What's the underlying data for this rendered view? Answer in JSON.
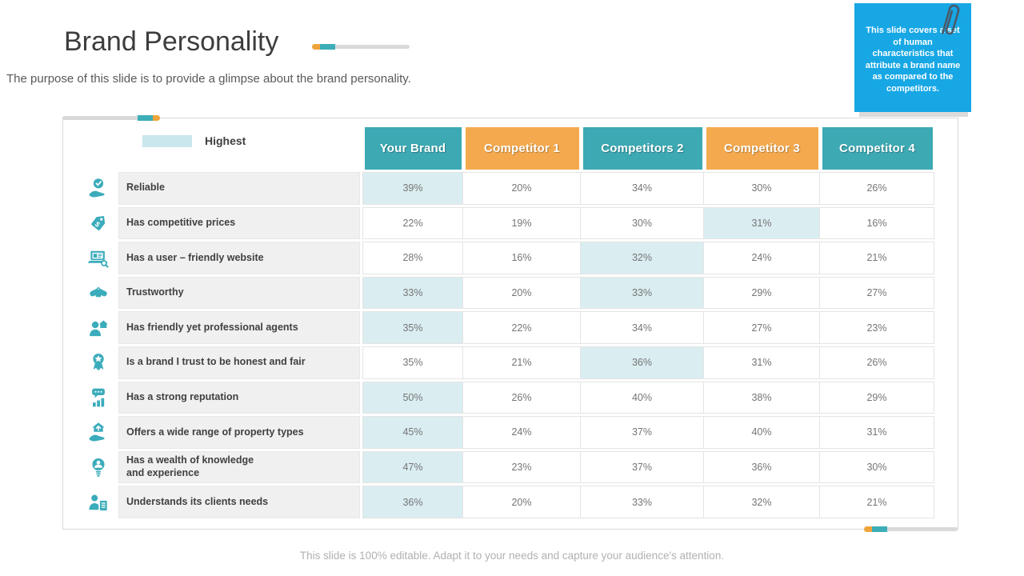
{
  "slide": {
    "title": "Brand Personality",
    "subtitle": "The purpose of this slide is to provide a glimpse about the brand personality.",
    "footer": "This slide is 100% editable. Adapt it to your needs and capture your audience's attention."
  },
  "note": {
    "text": "This slide covers a set of human characteristics that attribute a brand name as compared to the competitors."
  },
  "legend": {
    "label": "Highest"
  },
  "colors": {
    "teal": "#3CA9B3",
    "orange": "#F5A94E",
    "highlight": "#DAEDF1",
    "legend_swatch": "#C9E7EC",
    "note_blue": "#17A7E5",
    "icon_teal": "#3BACBB"
  },
  "chart_data": {
    "type": "table",
    "columns": [
      {
        "label": "Your Brand",
        "scheme": "teal"
      },
      {
        "label": "Competitor 1",
        "scheme": "orange"
      },
      {
        "label": "Competitors 2",
        "scheme": "teal"
      },
      {
        "label": "Competitor 3",
        "scheme": "orange"
      },
      {
        "label": "Competitor 4",
        "scheme": "teal"
      }
    ],
    "rows": [
      {
        "label": "Reliable",
        "icon": "reliability-clock-hand-icon",
        "values": [
          "39%",
          "20%",
          "34%",
          "30%",
          "26%"
        ],
        "highlight": [
          0
        ]
      },
      {
        "label": "Has competitive prices",
        "icon": "price-tag-icon",
        "values": [
          "22%",
          "19%",
          "30%",
          "31%",
          "16%"
        ],
        "highlight": [
          3
        ]
      },
      {
        "label": "Has a user – friendly website",
        "icon": "laptop-search-icon",
        "values": [
          "28%",
          "16%",
          "32%",
          "24%",
          "21%"
        ],
        "highlight": [
          2
        ]
      },
      {
        "label": "Trustworthy",
        "icon": "handshake-icon",
        "values": [
          "33%",
          "20%",
          "33%",
          "29%",
          "27%"
        ],
        "highlight": [
          0,
          2
        ]
      },
      {
        "label": "Has friendly yet professional agents",
        "icon": "agent-house-icon",
        "values": [
          "35%",
          "22%",
          "34%",
          "27%",
          "23%"
        ],
        "highlight": [
          0
        ]
      },
      {
        "label": "Is a brand I trust to be honest and fair",
        "icon": "award-ribbon-icon",
        "values": [
          "35%",
          "21%",
          "36%",
          "31%",
          "26%"
        ],
        "highlight": [
          2
        ]
      },
      {
        "label": "Has a strong reputation",
        "icon": "reputation-chart-icon",
        "values": [
          "50%",
          "26%",
          "40%",
          "38%",
          "29%"
        ],
        "highlight": [
          0
        ]
      },
      {
        "label": "Offers a wide range of property types",
        "icon": "property-hand-house-icon",
        "values": [
          "45%",
          "24%",
          "37%",
          "40%",
          "31%"
        ],
        "highlight": [
          0
        ]
      },
      {
        "label": "Has a wealth of knowledge\nand experience",
        "icon": "knowledge-bulb-icon",
        "values": [
          "47%",
          "23%",
          "37%",
          "36%",
          "30%"
        ],
        "highlight": [
          0
        ]
      },
      {
        "label": "Understands its clients needs",
        "icon": "client-needs-icon",
        "values": [
          "36%",
          "20%",
          "33%",
          "32%",
          "21%"
        ],
        "highlight": [
          0
        ]
      }
    ]
  }
}
